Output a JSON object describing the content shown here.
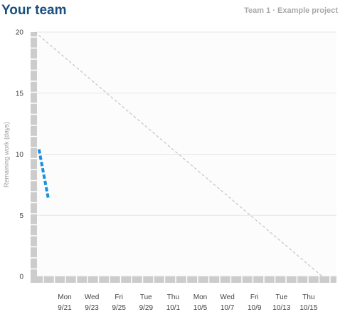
{
  "header": {
    "title": "Your team",
    "project": "Team 1 · Example project"
  },
  "chart_data": {
    "type": "line",
    "title": "",
    "xlabel": "",
    "ylabel": "Remaining work (days)",
    "ylim": [
      0,
      20
    ],
    "yticks": [
      0,
      5,
      10,
      15,
      20
    ],
    "grid": true,
    "categories": [
      {
        "day": "Mon",
        "date": "9/21"
      },
      {
        "day": "Wed",
        "date": "9/23"
      },
      {
        "day": "Fri",
        "date": "9/25"
      },
      {
        "day": "Tue",
        "date": "9/29"
      },
      {
        "day": "Thu",
        "date": "10/1"
      },
      {
        "day": "Mon",
        "date": "10/5"
      },
      {
        "day": "Wed",
        "date": "10/7"
      },
      {
        "day": "Fri",
        "date": "10/9"
      },
      {
        "day": "Tue",
        "date": "10/13"
      },
      {
        "day": "Thu",
        "date": "10/15"
      }
    ],
    "series": [
      {
        "style": "ideal",
        "color": "#bbbbbb",
        "points": [
          {
            "x": -1.1,
            "y": 20
          },
          {
            "x": 9.5,
            "y": 0
          }
        ]
      },
      {
        "style": "actual",
        "color": "#1a8fe0",
        "points": [
          {
            "x": -0.95,
            "y": 10.4
          },
          {
            "x": -0.6,
            "y": 6.3
          }
        ]
      }
    ]
  }
}
